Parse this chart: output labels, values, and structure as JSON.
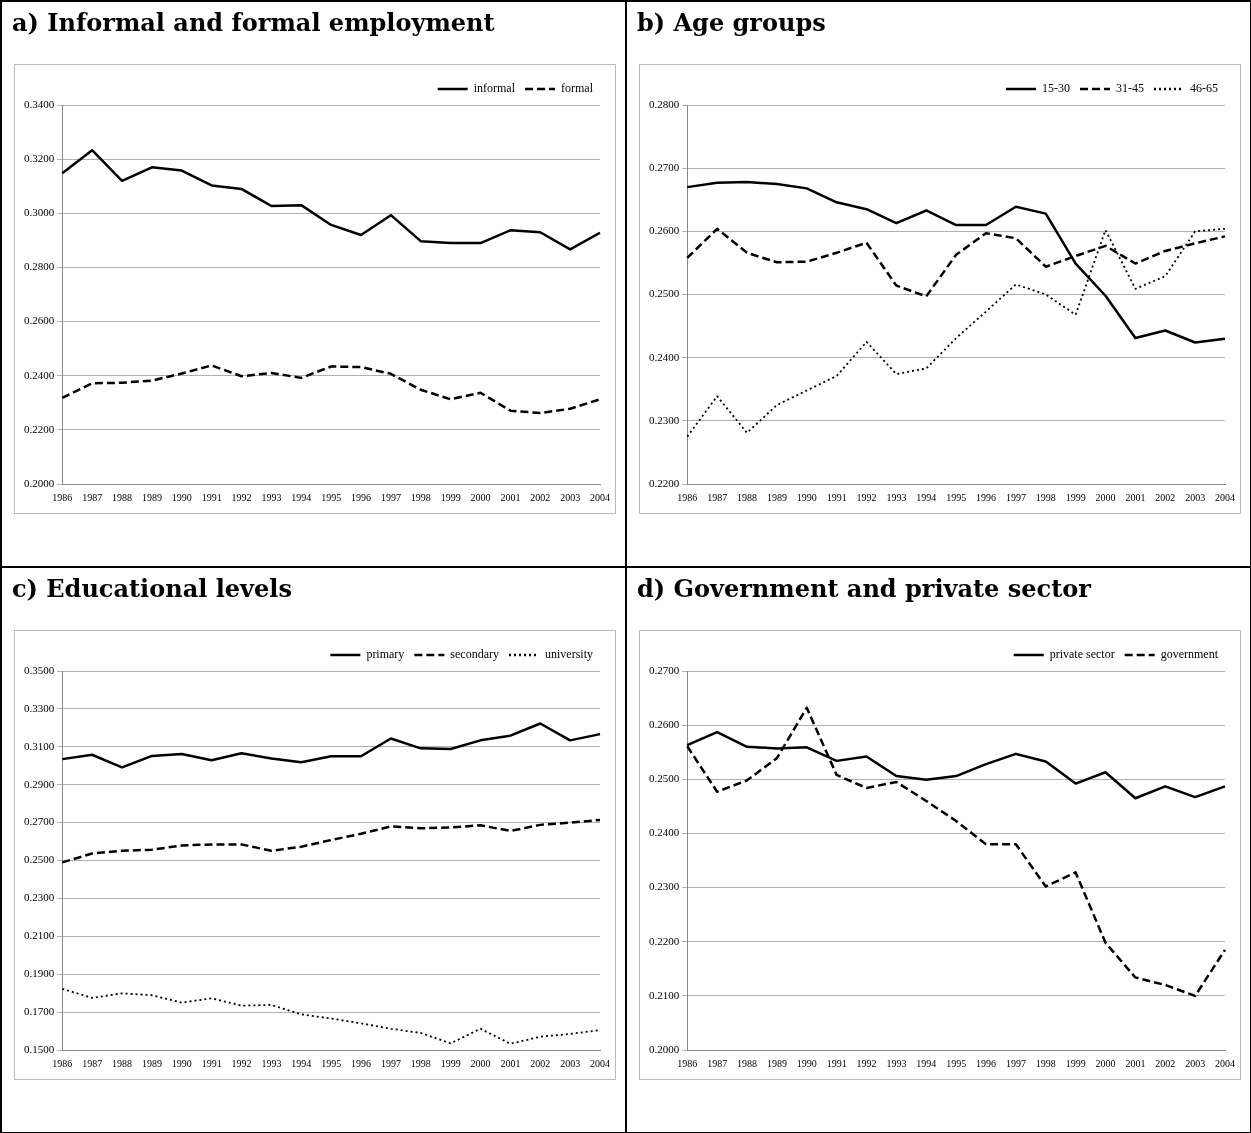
{
  "chart_data": [
    {
      "type": "line",
      "title": "a)  Informal and formal employment",
      "categories": [
        "1986",
        "1987",
        "1988",
        "1989",
        "1990",
        "1991",
        "1992",
        "1993",
        "1994",
        "1995",
        "1996",
        "1997",
        "1998",
        "1999",
        "2000",
        "2001",
        "2002",
        "2003",
        "2004"
      ],
      "series": [
        {
          "name": "informal",
          "color": "#000000",
          "line_style": "solid",
          "values": [
            0.3148,
            0.3233,
            0.312,
            0.317,
            0.3158,
            0.3103,
            0.309,
            0.3027,
            0.303,
            0.2957,
            0.292,
            0.2993,
            0.2897,
            0.289,
            0.289,
            0.2937,
            0.293,
            0.2867,
            0.2928
          ]
        },
        {
          "name": "formal",
          "color": "#000000",
          "line_style": "dashed",
          "values": [
            0.2318,
            0.2372,
            0.2374,
            0.2382,
            0.2408,
            0.2438,
            0.2398,
            0.241,
            0.2392,
            0.2434,
            0.2432,
            0.2407,
            0.2348,
            0.2313,
            0.2337,
            0.2271,
            0.2262,
            0.2278,
            0.2313
          ]
        }
      ],
      "ylim": [
        0.2,
        0.34
      ],
      "yticks": [
        {
          "value": 0.2,
          "label": "0.2000"
        },
        {
          "value": 0.22,
          "label": "0.2200"
        },
        {
          "value": 0.24,
          "label": "0.2400"
        },
        {
          "value": 0.26,
          "label": "0.2600"
        },
        {
          "value": 0.28,
          "label": "0.2800"
        },
        {
          "value": 0.3,
          "label": "0.3000"
        },
        {
          "value": 0.32,
          "label": "0.3200"
        },
        {
          "value": 0.34,
          "label": "0.3400"
        }
      ],
      "grid": "y",
      "legend": "top right",
      "marker": "none"
    },
    {
      "type": "line",
      "title": "b)  Age groups",
      "categories": [
        "1986",
        "1987",
        "1988",
        "1989",
        "1990",
        "1991",
        "1992",
        "1993",
        "1994",
        "1995",
        "1996",
        "1997",
        "1998",
        "1999",
        "2000",
        "2001",
        "2002",
        "2003",
        "2004"
      ],
      "series": [
        {
          "name": "15-30",
          "color": "#000000",
          "line_style": "solid",
          "values": [
            0.267,
            0.2677,
            0.2678,
            0.2675,
            0.2668,
            0.2646,
            0.2635,
            0.2613,
            0.2633,
            0.261,
            0.261,
            0.2639,
            0.2628,
            0.2549,
            0.2498,
            0.2431,
            0.2443,
            0.2424,
            0.243
          ]
        },
        {
          "name": "31-45",
          "color": "#000000",
          "line_style": "dashed",
          "values": [
            0.2558,
            0.2604,
            0.2566,
            0.2551,
            0.2552,
            0.2566,
            0.2582,
            0.2514,
            0.2497,
            0.2563,
            0.2597,
            0.2589,
            0.2544,
            0.2561,
            0.2577,
            0.2549,
            0.2569,
            0.2581,
            0.2592
          ]
        },
        {
          "name": "46-65",
          "color": "#000000",
          "line_style": "dotted",
          "values": [
            0.2275,
            0.2339,
            0.2281,
            0.2325,
            0.2348,
            0.2371,
            0.2425,
            0.2374,
            0.2383,
            0.2431,
            0.2473,
            0.2516,
            0.25,
            0.2468,
            0.2602,
            0.2509,
            0.2529,
            0.26,
            0.2604
          ]
        }
      ],
      "ylim": [
        0.22,
        0.28
      ],
      "yticks": [
        {
          "value": 0.22,
          "label": "0.2200"
        },
        {
          "value": 0.23,
          "label": "0.2300"
        },
        {
          "value": 0.24,
          "label": "0.2400"
        },
        {
          "value": 0.25,
          "label": "0.2500"
        },
        {
          "value": 0.26,
          "label": "0.2600"
        },
        {
          "value": 0.27,
          "label": "0.2700"
        },
        {
          "value": 0.28,
          "label": "0.2800"
        }
      ],
      "grid": "y",
      "legend": "top right",
      "marker": "none"
    },
    {
      "type": "line",
      "title": "c)  Educational levels",
      "categories": [
        "1986",
        "1987",
        "1988",
        "1989",
        "1990",
        "1991",
        "1992",
        "1993",
        "1994",
        "1995",
        "1996",
        "1997",
        "1998",
        "1999",
        "2000",
        "2001",
        "2002",
        "2003",
        "2004"
      ],
      "series": [
        {
          "name": "primary",
          "color": "#000000",
          "line_style": "solid",
          "values": [
            0.3035,
            0.3058,
            0.2991,
            0.3052,
            0.3062,
            0.3029,
            0.3066,
            0.3038,
            0.3019,
            0.305,
            0.305,
            0.3144,
            0.3092,
            0.3088,
            0.3134,
            0.3159,
            0.3223,
            0.3134,
            0.3167
          ]
        },
        {
          "name": "secondary",
          "color": "#000000",
          "line_style": "dashed",
          "values": [
            0.249,
            0.2537,
            0.2551,
            0.2557,
            0.2579,
            0.2585,
            0.2585,
            0.2551,
            0.2573,
            0.2608,
            0.2641,
            0.268,
            0.267,
            0.2674,
            0.2686,
            0.2656,
            0.2688,
            0.27,
            0.2714
          ]
        },
        {
          "name": "university",
          "color": "#000000",
          "line_style": "dotted",
          "values": [
            0.1823,
            0.1775,
            0.1799,
            0.1789,
            0.175,
            0.1773,
            0.1734,
            0.1738,
            0.1688,
            0.1666,
            0.1641,
            0.1612,
            0.159,
            0.1535,
            0.1612,
            0.1533,
            0.157,
            0.1585,
            0.1605
          ]
        }
      ],
      "ylim": [
        0.15,
        0.35
      ],
      "yticks": [
        {
          "value": 0.15,
          "label": "0.1500"
        },
        {
          "value": 0.17,
          "label": "0.1700"
        },
        {
          "value": 0.19,
          "label": "0.1900"
        },
        {
          "value": 0.21,
          "label": "0.2100"
        },
        {
          "value": 0.23,
          "label": "0.2300"
        },
        {
          "value": 0.25,
          "label": "0.2500"
        },
        {
          "value": 0.27,
          "label": "0.2700"
        },
        {
          "value": 0.29,
          "label": "0.2900"
        },
        {
          "value": 0.31,
          "label": "0.3100"
        },
        {
          "value": 0.33,
          "label": "0.3300"
        },
        {
          "value": 0.35,
          "label": "0.3500"
        }
      ],
      "grid": "y",
      "legend": "top right",
      "marker": "none"
    },
    {
      "type": "line",
      "title": "d)  Government and private sector",
      "categories": [
        "1986",
        "1987",
        "1988",
        "1989",
        "1990",
        "1991",
        "1992",
        "1993",
        "1994",
        "1995",
        "1996",
        "1997",
        "1998",
        "1999",
        "2000",
        "2001",
        "2002",
        "2003",
        "2004"
      ],
      "series": [
        {
          "name": "private sector",
          "color": "#000000",
          "line_style": "solid",
          "values": [
            0.2563,
            0.2587,
            0.256,
            0.2557,
            0.2559,
            0.2534,
            0.2542,
            0.2506,
            0.2499,
            0.2506,
            0.2528,
            0.2547,
            0.2533,
            0.2492,
            0.2513,
            0.2465,
            0.2487,
            0.2467,
            0.2487
          ]
        },
        {
          "name": "government",
          "color": "#000000",
          "line_style": "dashed",
          "values": [
            0.2561,
            0.2477,
            0.2498,
            0.2539,
            0.2632,
            0.2508,
            0.2484,
            0.2495,
            0.246,
            0.2423,
            0.238,
            0.238,
            0.2302,
            0.2328,
            0.2198,
            0.2134,
            0.212,
            0.21,
            0.2185
          ]
        }
      ],
      "ylim": [
        0.2,
        0.27
      ],
      "yticks": [
        {
          "value": 0.2,
          "label": "0.2000"
        },
        {
          "value": 0.21,
          "label": "0.2100"
        },
        {
          "value": 0.22,
          "label": "0.2200"
        },
        {
          "value": 0.23,
          "label": "0.2300"
        },
        {
          "value": 0.24,
          "label": "0.2400"
        },
        {
          "value": 0.25,
          "label": "0.2500"
        },
        {
          "value": 0.26,
          "label": "0.2600"
        },
        {
          "value": 0.27,
          "label": "0.2700"
        }
      ],
      "grid": "y",
      "legend": "top right",
      "marker": "none"
    }
  ]
}
